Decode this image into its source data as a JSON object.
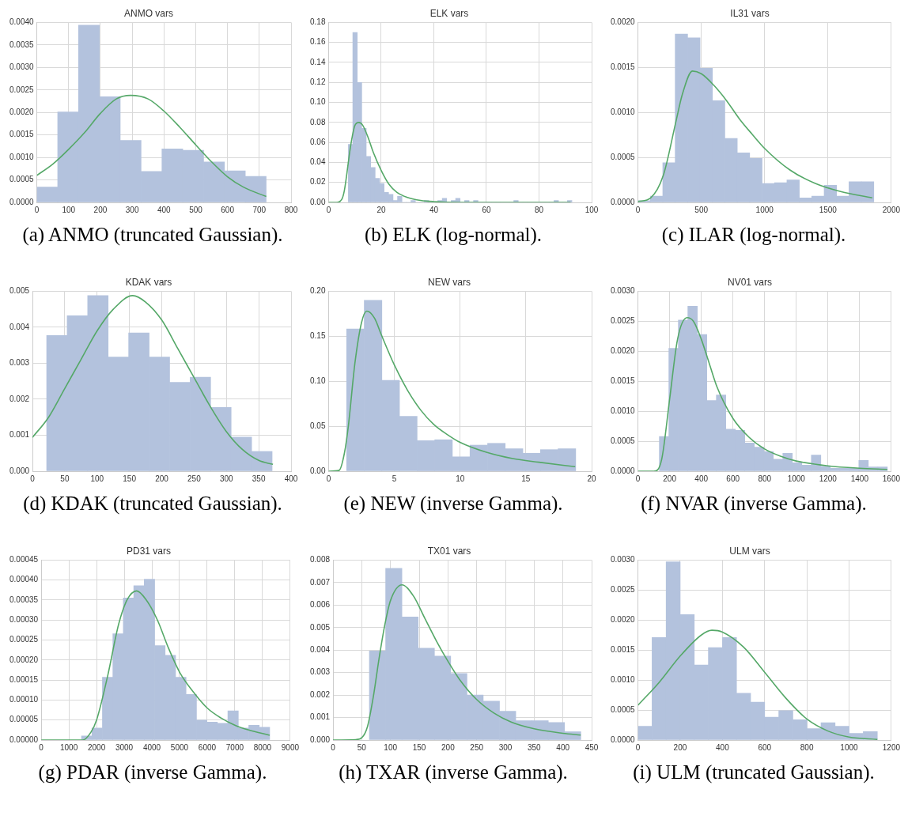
{
  "chart_data": [
    {
      "type": "histogram",
      "title": "ANMO vars",
      "annotations": [
        "(a) ANMO (truncated Gaussian)."
      ],
      "grid": true,
      "series": [
        {
          "type": "histogram",
          "color": "#b3c2dd",
          "bins": [
            0,
            65.6,
            131.2,
            196.8,
            262.4,
            328,
            393.6,
            459.2,
            524.8,
            590.4,
            656,
            721.6
          ],
          "values": [
            0.00034,
            0.00201,
            0.00394,
            0.00235,
            0.00138,
            0.00069,
            0.00119,
            0.00116,
            0.0009,
            0.0007,
            0.00058
          ]
        },
        {
          "type": "line",
          "color": "#55a868",
          "x": [
            0,
            50,
            100,
            150,
            200,
            250,
            295,
            350,
            400,
            450,
            500,
            550,
            600,
            650,
            722
          ],
          "values": [
            0.0006,
            0.00085,
            0.00118,
            0.00155,
            0.00198,
            0.0023,
            0.00238,
            0.0023,
            0.00203,
            0.00167,
            0.00128,
            0.0009,
            0.00057,
            0.00034,
            0.00013
          ]
        }
      ],
      "xlim": [
        0,
        800
      ],
      "xticks": [
        0,
        100,
        200,
        300,
        400,
        500,
        600,
        700,
        800
      ],
      "ylim": [
        0,
        0.004
      ],
      "yticks": [
        {
          "value": 0,
          "label": "0.0000"
        },
        {
          "value": 0.0005,
          "label": "0.0005"
        },
        {
          "value": 0.001,
          "label": "0.0010"
        },
        {
          "value": 0.0015,
          "label": "0.0015"
        },
        {
          "value": 0.002,
          "label": "0.0020"
        },
        {
          "value": 0.0025,
          "label": "0.0025"
        },
        {
          "value": 0.003,
          "label": "0.0030"
        },
        {
          "value": 0.0035,
          "label": "0.0035"
        },
        {
          "value": 0.004,
          "label": "0.0040"
        }
      ]
    },
    {
      "type": "histogram",
      "title": "ELK vars",
      "annotations": [
        "(b) ELK (log-normal)."
      ],
      "grid": true,
      "series": [
        {
          "type": "histogram",
          "color": "#b3c2dd",
          "bins": [
            7.5,
            9.2,
            10.9,
            12.6,
            14.3,
            16,
            17.7,
            19.4,
            21.1,
            22.8,
            24.5,
            26.2,
            27.9,
            29.6,
            31.3,
            33,
            34.7,
            36.4,
            38.1,
            39.8,
            41.5,
            43.2,
            44.9,
            46.6,
            48.3,
            50,
            51.7,
            53.4,
            55.1,
            56.8,
            58.5,
            60.2,
            61.9,
            63.6,
            65.3,
            67,
            68.7,
            70.4,
            72.1,
            73.8,
            75.5,
            77.2,
            78.9,
            80.6,
            82.3,
            84,
            85.7,
            87.4,
            89.1,
            90.8,
            92.5
          ],
          "values": [
            0.058,
            0.17,
            0.12,
            0.074,
            0.046,
            0.035,
            0.024,
            0.019,
            0.01,
            0.008,
            0.002,
            0.006,
            0,
            0,
            0.002,
            0,
            0,
            0.002,
            0,
            0,
            0.002,
            0.004,
            0,
            0.002,
            0.004,
            0,
            0.002,
            0,
            0.002,
            0,
            0,
            0,
            0,
            0,
            0,
            0,
            0,
            0.002,
            0,
            0,
            0,
            0,
            0,
            0,
            0,
            0,
            0.002,
            0,
            0,
            0.002
          ]
        },
        {
          "type": "line",
          "color": "#55a868",
          "x": [
            0,
            3,
            5,
            6,
            7,
            8,
            9,
            10,
            11.5,
            13,
            15,
            17,
            20,
            23,
            26,
            30,
            35,
            40,
            50,
            70,
            92
          ],
          "values": [
            0,
            0,
            0.003,
            0.012,
            0.03,
            0.05,
            0.066,
            0.077,
            0.08,
            0.077,
            0.065,
            0.05,
            0.032,
            0.018,
            0.01,
            0.005,
            0.002,
            0.0008,
            0,
            0,
            0
          ]
        }
      ],
      "xlim": [
        0,
        100
      ],
      "xticks": [
        0,
        20,
        40,
        60,
        80,
        100
      ],
      "ylim": [
        0,
        0.18
      ],
      "yticks": [
        {
          "value": 0,
          "label": "0.00"
        },
        {
          "value": 0.02,
          "label": "0.02"
        },
        {
          "value": 0.04,
          "label": "0.04"
        },
        {
          "value": 0.06,
          "label": "0.06"
        },
        {
          "value": 0.08,
          "label": "0.08"
        },
        {
          "value": 0.1,
          "label": "0.10"
        },
        {
          "value": 0.12,
          "label": "0.12"
        },
        {
          "value": 0.14,
          "label": "0.14"
        },
        {
          "value": 0.16,
          "label": "0.16"
        },
        {
          "value": 0.18,
          "label": "0.18"
        }
      ]
    },
    {
      "type": "histogram",
      "title": "IL31 vars",
      "annotations": [
        "(c) ILAR (log-normal)."
      ],
      "grid": true,
      "series": [
        {
          "type": "histogram",
          "color": "#b3c2dd",
          "bins": [
            0,
            98,
            196,
            294,
            392,
            490,
            588,
            686,
            784,
            882,
            980,
            1078,
            1176,
            1274,
            1372,
            1470,
            1568,
            1666,
            1764,
            1862
          ],
          "values": [
            2e-05,
            7e-05,
            0.00044,
            0.00187,
            0.00183,
            0.00149,
            0.00113,
            0.00071,
            0.00055,
            0.00049,
            0.00021,
            0.00022,
            0.00025,
            5e-05,
            7e-05,
            0.00019,
            7e-05,
            0.00023,
            0.00023
          ]
        },
        {
          "type": "line",
          "color": "#55a868",
          "x": [
            0,
            100,
            200,
            300,
            350,
            430,
            500,
            600,
            700,
            800,
            900,
            1000,
            1200,
            1400,
            1600,
            1850
          ],
          "values": [
            1e-05,
            5e-05,
            0.0003,
            0.0009,
            0.0012,
            0.00146,
            0.00143,
            0.0013,
            0.00113,
            0.00093,
            0.00076,
            0.0006,
            0.00036,
            0.00021,
            0.00012,
            5e-05
          ]
        }
      ],
      "xlim": [
        0,
        2000
      ],
      "xticks": [
        0,
        500,
        1000,
        1500,
        2000
      ],
      "ylim": [
        0,
        0.002
      ],
      "yticks": [
        {
          "value": 0,
          "label": "0.0000"
        },
        {
          "value": 0.0005,
          "label": "0.0005"
        },
        {
          "value": 0.001,
          "label": "0.0010"
        },
        {
          "value": 0.0015,
          "label": "0.0015"
        },
        {
          "value": 0.002,
          "label": "0.0020"
        }
      ]
    },
    {
      "type": "histogram",
      "title": "KDAK vars",
      "annotations": [
        "(d) KDAK (truncated Gaussian)."
      ],
      "grid": true,
      "series": [
        {
          "type": "histogram",
          "color": "#b3c2dd",
          "bins": [
            22,
            53.7,
            85.4,
            117.1,
            148.8,
            180.5,
            212.2,
            243.9,
            275.6,
            307.3,
            339,
            370.7
          ],
          "values": [
            0.00377,
            0.00432,
            0.00488,
            0.00317,
            0.00384,
            0.00317,
            0.00247,
            0.00261,
            0.00177,
            0.00095,
            0.00055
          ]
        },
        {
          "type": "line",
          "color": "#55a868",
          "x": [
            0,
            25,
            50,
            75,
            100,
            125,
            155,
            175,
            200,
            225,
            250,
            275,
            300,
            325,
            350,
            372
          ],
          "values": [
            0.00094,
            0.0015,
            0.0023,
            0.0031,
            0.0039,
            0.0045,
            0.00488,
            0.0047,
            0.0042,
            0.0034,
            0.0026,
            0.0018,
            0.0011,
            0.0006,
            0.0003,
            0.00019
          ]
        }
      ],
      "xlim": [
        0,
        400
      ],
      "xticks": [
        0,
        50,
        100,
        150,
        200,
        250,
        300,
        350,
        400
      ],
      "ylim": [
        0,
        0.005
      ],
      "yticks": [
        {
          "value": 0,
          "label": "0.000"
        },
        {
          "value": 0.001,
          "label": "0.001"
        },
        {
          "value": 0.002,
          "label": "0.002"
        },
        {
          "value": 0.003,
          "label": "0.003"
        },
        {
          "value": 0.004,
          "label": "0.004"
        },
        {
          "value": 0.005,
          "label": "0.005"
        }
      ]
    },
    {
      "type": "histogram",
      "title": "NEW vars",
      "annotations": [
        "(e) NEW (inverse Gamma)."
      ],
      "grid": true,
      "series": [
        {
          "type": "histogram",
          "color": "#b3c2dd",
          "bins": [
            1.37,
            2.71,
            4.05,
            5.39,
            6.73,
            8.07,
            9.41,
            10.75,
            12.09,
            13.43,
            14.77,
            16.11,
            17.45,
            18.79
          ],
          "values": [
            0.158,
            0.19,
            0.101,
            0.061,
            0.034,
            0.035,
            0.016,
            0.029,
            0.031,
            0.025,
            0.02,
            0.024,
            0.025
          ]
        },
        {
          "type": "line",
          "color": "#55a868",
          "x": [
            0,
            0.8,
            1.2,
            1.5,
            2,
            2.5,
            2.9,
            3.5,
            4,
            5,
            6,
            7,
            8,
            9,
            10,
            12,
            14,
            16,
            18.75
          ],
          "values": [
            0,
            0.001,
            0.02,
            0.05,
            0.12,
            0.165,
            0.178,
            0.17,
            0.152,
            0.118,
            0.09,
            0.068,
            0.052,
            0.041,
            0.032,
            0.021,
            0.014,
            0.01,
            0.005
          ]
        }
      ],
      "xlim": [
        0,
        20
      ],
      "xticks": [
        0,
        5,
        10,
        15,
        20
      ],
      "ylim": [
        0,
        0.2
      ],
      "yticks": [
        {
          "value": 0,
          "label": "0.00"
        },
        {
          "value": 0.05,
          "label": "0.05"
        },
        {
          "value": 0.1,
          "label": "0.10"
        },
        {
          "value": 0.15,
          "label": "0.15"
        },
        {
          "value": 0.2,
          "label": "0.20"
        }
      ]
    },
    {
      "type": "histogram",
      "title": "NV01 vars",
      "annotations": [
        "(f) NVAR (inverse Gamma)."
      ],
      "grid": true,
      "series": [
        {
          "type": "histogram",
          "color": "#b3c2dd",
          "bins": [
            135,
            195,
            255,
            315,
            375,
            435,
            495,
            555,
            615,
            675,
            735,
            795,
            855,
            915,
            975,
            1035,
            1095,
            1155,
            1215,
            1275,
            1335,
            1395,
            1455,
            1515,
            1575
          ],
          "values": [
            0.00058,
            0.00205,
            0.00252,
            0.00275,
            0.00228,
            0.00118,
            0.00127,
            0.0007,
            0.00068,
            0.00047,
            0.0004,
            0.00033,
            0.0002,
            0.0003,
            0.00014,
            0.0001,
            0.00027,
            8e-05,
            5e-05,
            5e-05,
            5e-05,
            0.00018,
            7e-05,
            7e-05
          ]
        },
        {
          "type": "line",
          "color": "#55a868",
          "x": [
            0,
            100,
            150,
            200,
            250,
            310,
            350,
            400,
            450,
            500,
            600,
            700,
            800,
            900,
            1000,
            1200,
            1400,
            1575
          ],
          "values": [
            0,
            0,
            0.0002,
            0.0012,
            0.0022,
            0.00256,
            0.0025,
            0.0022,
            0.0018,
            0.0014,
            0.00088,
            0.00057,
            0.00037,
            0.00025,
            0.00017,
            9e-05,
            5e-05,
            3e-05
          ]
        }
      ],
      "xlim": [
        0,
        1600
      ],
      "xticks": [
        0,
        200,
        400,
        600,
        800,
        1000,
        1200,
        1400,
        1600
      ],
      "ylim": [
        0,
        0.003
      ],
      "yticks": [
        {
          "value": 0,
          "label": "0.0000"
        },
        {
          "value": 0.0005,
          "label": "0.0005"
        },
        {
          "value": 0.001,
          "label": "0.0010"
        },
        {
          "value": 0.0015,
          "label": "0.0015"
        },
        {
          "value": 0.002,
          "label": "0.0020"
        },
        {
          "value": 0.0025,
          "label": "0.0025"
        },
        {
          "value": 0.003,
          "label": "0.0030"
        }
      ]
    },
    {
      "type": "histogram",
      "title": "PD31 vars",
      "annotations": [
        "(g) PDAR (inverse Gamma)."
      ],
      "grid": true,
      "series": [
        {
          "type": "histogram",
          "color": "#b3c2dd",
          "bins": [
            1455,
            1833,
            2211,
            2589,
            2967,
            3345,
            3723,
            4101,
            4479,
            4857,
            5235,
            5613,
            5991,
            6369,
            6747,
            7125,
            7503,
            7881,
            8259
          ],
          "values": [
            1e-05,
            3e-05,
            0.000157,
            0.000266,
            0.000355,
            0.000386,
            0.000402,
            0.000236,
            0.000212,
            0.000157,
            0.000114,
            5e-05,
            4.5e-05,
            4.2e-05,
            7.3e-05,
            3e-05,
            3.7e-05,
            3.2e-05
          ]
        },
        {
          "type": "line",
          "color": "#55a868",
          "x": [
            0,
            1000,
            1500,
            1800,
            2000,
            2400,
            2800,
            3100,
            3450,
            3800,
            4200,
            4600,
            5000,
            5500,
            6000,
            6500,
            7000,
            7500,
            8259
          ],
          "values": [
            0,
            0,
            0,
            2e-05,
            5e-05,
            0.00016,
            0.00029,
            0.00035,
            0.000373,
            0.00035,
            0.0003,
            0.00023,
            0.00017,
            0.00012,
            8e-05,
            5.5e-05,
            3.7e-05,
            2.5e-05,
            1.2e-05
          ]
        }
      ],
      "xlim": [
        0,
        9000
      ],
      "xticks": [
        0,
        1000,
        2000,
        3000,
        4000,
        5000,
        6000,
        7000,
        8000,
        9000
      ],
      "ylim": [
        0,
        0.00045
      ],
      "yticks": [
        {
          "value": 0,
          "label": "0.00000"
        },
        {
          "value": 5e-05,
          "label": "0.00005"
        },
        {
          "value": 0.0001,
          "label": "0.00010"
        },
        {
          "value": 0.00015,
          "label": "0.00015"
        },
        {
          "value": 0.0002,
          "label": "0.00020"
        },
        {
          "value": 0.00025,
          "label": "0.00025"
        },
        {
          "value": 0.0003,
          "label": "0.00030"
        },
        {
          "value": 0.00035,
          "label": "0.00035"
        },
        {
          "value": 0.0004,
          "label": "0.00040"
        },
        {
          "value": 0.00045,
          "label": "0.00045"
        }
      ]
    },
    {
      "type": "histogram",
      "title": "TX01 vars",
      "annotations": [
        "(h) TXAR (inverse Gamma)."
      ],
      "grid": true,
      "series": [
        {
          "type": "histogram",
          "color": "#b3c2dd",
          "bins": [
            63.3,
            91.6,
            119.9,
            148.2,
            176.5,
            204.8,
            233.1,
            261.4,
            289.7,
            318,
            346.3,
            374.6,
            402.9,
            431.2
          ],
          "values": [
            0.00396,
            0.00763,
            0.00547,
            0.00408,
            0.00373,
            0.00296,
            0.002,
            0.00173,
            0.00128,
            0.00086,
            0.00086,
            0.00078,
            0.00037
          ]
        },
        {
          "type": "line",
          "color": "#55a868",
          "x": [
            0,
            40,
            50,
            60,
            70,
            80,
            90,
            100,
            120,
            140,
            160,
            180,
            200,
            220,
            250,
            280,
            310,
            350,
            400,
            431
          ],
          "values": [
            0,
            2e-05,
            0.0001,
            0.0006,
            0.0019,
            0.0036,
            0.0051,
            0.0062,
            0.0069,
            0.0064,
            0.0054,
            0.0044,
            0.0035,
            0.0027,
            0.0018,
            0.0012,
            0.0008,
            0.0005,
            0.0003,
            0.00022
          ]
        }
      ],
      "xlim": [
        0,
        450
      ],
      "xticks": [
        0,
        50,
        100,
        150,
        200,
        250,
        300,
        350,
        400,
        450
      ],
      "ylim": [
        0,
        0.008
      ],
      "yticks": [
        {
          "value": 0,
          "label": "0.000"
        },
        {
          "value": 0.001,
          "label": "0.001"
        },
        {
          "value": 0.002,
          "label": "0.002"
        },
        {
          "value": 0.003,
          "label": "0.003"
        },
        {
          "value": 0.004,
          "label": "0.004"
        },
        {
          "value": 0.005,
          "label": "0.005"
        },
        {
          "value": 0.006,
          "label": "0.006"
        },
        {
          "value": 0.007,
          "label": "0.007"
        },
        {
          "value": 0.008,
          "label": "0.008"
        }
      ]
    },
    {
      "type": "histogram",
      "title": "ULM vars",
      "annotations": [
        "(i) ULM (truncated Gaussian)."
      ],
      "grid": true,
      "series": [
        {
          "type": "histogram",
          "color": "#b3c2dd",
          "bins": [
            0,
            66.7,
            133.4,
            200.1,
            266.8,
            333.5,
            400.2,
            466.9,
            533.6,
            600.3,
            667,
            733.7,
            800.4,
            867.1,
            933.8,
            1000.5,
            1067.2,
            1133.9
          ],
          "values": [
            0.00023,
            0.00171,
            0.00297,
            0.00209,
            0.00125,
            0.00154,
            0.00171,
            0.00078,
            0.00063,
            0.00038,
            0.00049,
            0.00034,
            0.00019,
            0.00029,
            0.00023,
            0.00011,
            0.00014
          ]
        },
        {
          "type": "line",
          "color": "#55a868",
          "x": [
            0,
            100,
            200,
            300,
            350,
            400,
            500,
            600,
            700,
            800,
            900,
            1000,
            1134
          ],
          "values": [
            0.00058,
            0.00096,
            0.0014,
            0.00175,
            0.00183,
            0.0018,
            0.00155,
            0.00113,
            0.0007,
            0.00035,
            0.00015,
            5e-05,
            1e-05
          ]
        }
      ],
      "xlim": [
        0,
        1200
      ],
      "xticks": [
        0,
        200,
        400,
        600,
        800,
        1000,
        1200
      ],
      "ylim": [
        0,
        0.003
      ],
      "yticks": [
        {
          "value": 0,
          "label": "0.0000"
        },
        {
          "value": 0.0005,
          "label": "0.0005"
        },
        {
          "value": 0.001,
          "label": "0.0010"
        },
        {
          "value": 0.0015,
          "label": "0.0015"
        },
        {
          "value": 0.002,
          "label": "0.0020"
        },
        {
          "value": 0.0025,
          "label": "0.0025"
        },
        {
          "value": 0.003,
          "label": "0.0030"
        }
      ]
    }
  ]
}
